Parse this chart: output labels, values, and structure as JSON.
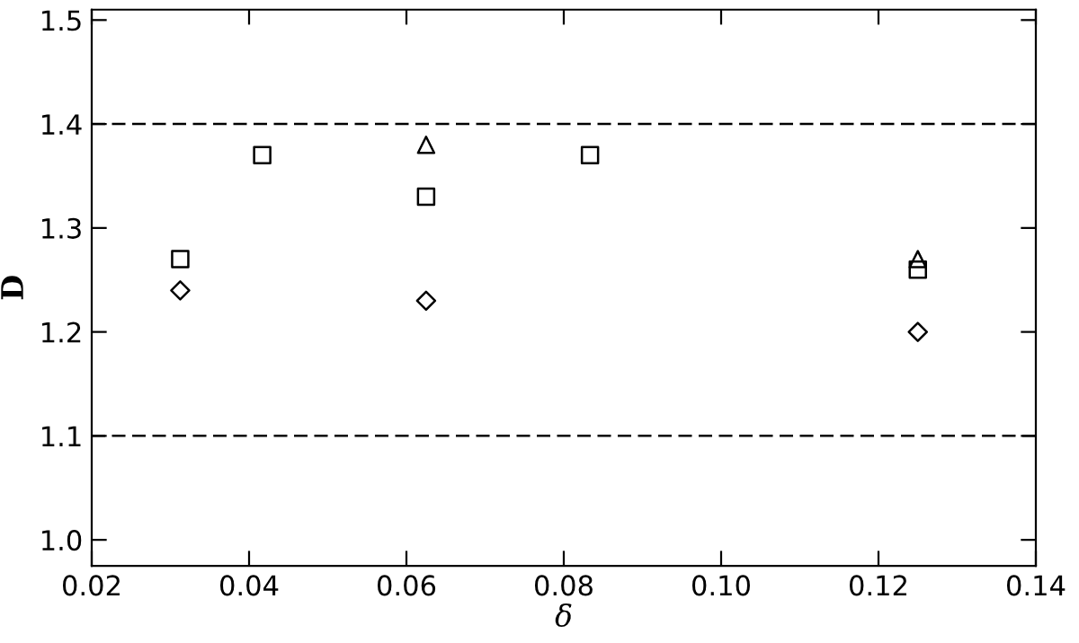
{
  "chart_data": {
    "type": "scatter",
    "xlabel": "δ",
    "ylabel": "D",
    "xlim": [
      0.02,
      0.14
    ],
    "xticks": [
      {
        "value": 0.02,
        "label": "0.02"
      },
      {
        "value": 0.04,
        "label": "0.04"
      },
      {
        "value": 0.06,
        "label": "0.06"
      },
      {
        "value": 0.08,
        "label": "0.08"
      },
      {
        "value": 0.1,
        "label": "0.10"
      },
      {
        "value": 0.12,
        "label": "0.12"
      },
      {
        "value": 0.14,
        "label": "0.14"
      }
    ],
    "ylim": [
      0.975,
      1.51
    ],
    "yticks": [
      {
        "value": 1.0,
        "label": "1.0"
      },
      {
        "value": 1.1,
        "label": "1.1"
      },
      {
        "value": 1.2,
        "label": "1.2"
      },
      {
        "value": 1.3,
        "label": "1.3"
      },
      {
        "value": 1.4,
        "label": "1.4"
      },
      {
        "value": 1.5,
        "label": "1.5"
      }
    ],
    "grid": false,
    "legend": false,
    "series": [
      {
        "color": "#000000",
        "marker": "square",
        "x": [
          0.03125,
          0.04167,
          0.0625,
          0.08333,
          0.125
        ],
        "values": [
          1.27,
          1.37,
          1.33,
          1.37,
          1.26
        ]
      },
      {
        "color": "#000000",
        "marker": "triangle",
        "x": [
          0.0625,
          0.125
        ],
        "values": [
          1.38,
          1.27
        ]
      },
      {
        "color": "#000000",
        "marker": "diamond",
        "x": [
          0.03125,
          0.0625,
          0.125
        ],
        "values": [
          1.24,
          1.23,
          1.2
        ]
      }
    ],
    "ref_lines": [
      {
        "axis": "y",
        "value": 1.4,
        "line_style": "dashed",
        "color": "#000000"
      },
      {
        "axis": "y",
        "value": 1.1,
        "line_style": "dashed",
        "color": "#000000"
      }
    ]
  }
}
